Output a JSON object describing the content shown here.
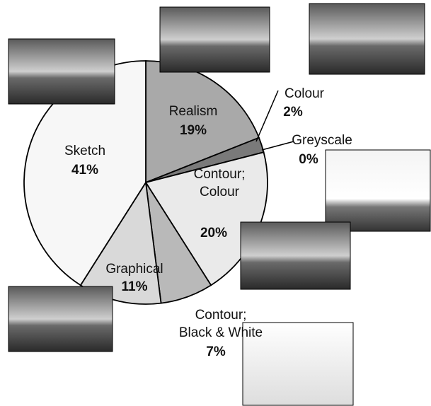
{
  "chart_data": {
    "type": "pie",
    "categories": [
      "Realism",
      "Colour",
      "Greyscale",
      "Contour; Colour",
      "Contour; Black & White",
      "Graphical",
      "Sketch"
    ],
    "values": [
      19,
      2,
      0,
      20,
      7,
      11,
      41
    ],
    "value_labels": [
      "19%",
      "2%",
      "0%",
      "20%",
      "7%",
      "11%",
      "41%"
    ],
    "colors": [
      "#a9a9a9",
      "#7a7a7a",
      "#555555",
      "#eaeaea",
      "#b9b9b9",
      "#d9d9d9",
      "#f7f7f7"
    ]
  }
}
